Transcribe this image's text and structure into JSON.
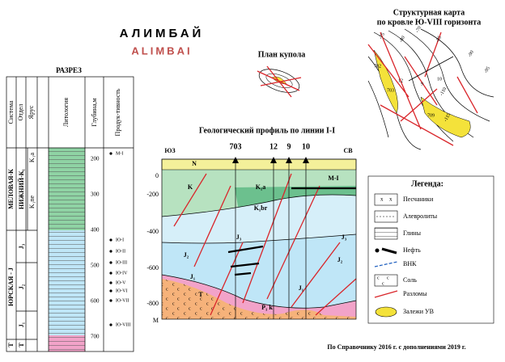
{
  "title": "АЛИМБАЙ",
  "subtitle": "ALIMBAI",
  "dome_plan": {
    "title": "План купола"
  },
  "structure_map": {
    "title_lines": [
      "Структурная карта",
      "по кровле  Ю-VIII горизонта"
    ],
    "wells": [
      "702",
      "703",
      "709",
      "12",
      "9",
      "10"
    ],
    "contours": [
      "-75",
      "-80",
      "-70",
      "-85",
      "-90",
      "-95",
      "-110",
      "-115"
    ]
  },
  "section": {
    "title": "РАЗРЕЗ",
    "headers": [
      "Система",
      "Отдел",
      "Ярус",
      "Литология",
      "Глубина,м",
      "Продук-тивность"
    ],
    "depths": [
      "200",
      "300",
      "400",
      "500",
      "600",
      "700"
    ],
    "systems": [
      "МЕЛОВАЯ-К",
      "ЮРСКАЯ - J",
      "T"
    ],
    "series": [
      "НИЖНИЙ-К₁",
      "J₃",
      "J₂",
      "J₁",
      "T"
    ],
    "stages": [
      "K₁a",
      "K₁ne"
    ],
    "productive": [
      "М-I",
      "Ю-I",
      "Ю-II",
      "Ю-III",
      "Ю-IV",
      "Ю-V",
      "Ю-VI",
      "Ю-VII",
      "Ю-VIII"
    ]
  },
  "profile": {
    "title": "Геологический профиль по линии I-I",
    "directions": [
      "ЮЗ",
      "СВ"
    ],
    "wells": [
      "703",
      "12",
      "9",
      "10"
    ],
    "depth_labels": [
      "0",
      "-200",
      "-400",
      "-600",
      "-800",
      "М"
    ],
    "layers": [
      "N",
      "K",
      "K₁a",
      "K₁br",
      "J₃",
      "J₂",
      "J₁",
      "T",
      "P₁ k",
      "М-I",
      "J₃",
      "J₂",
      "J₁"
    ]
  },
  "legend": {
    "title": "Легенда:",
    "items": [
      "Песчаники",
      "Алевролиты",
      "Глины",
      "Нефть",
      "ВНК",
      "Соль",
      "Разломы",
      "Залежи УВ"
    ]
  },
  "footer": "По Справочнику 2016 г. с дополнениями 2019 г."
}
